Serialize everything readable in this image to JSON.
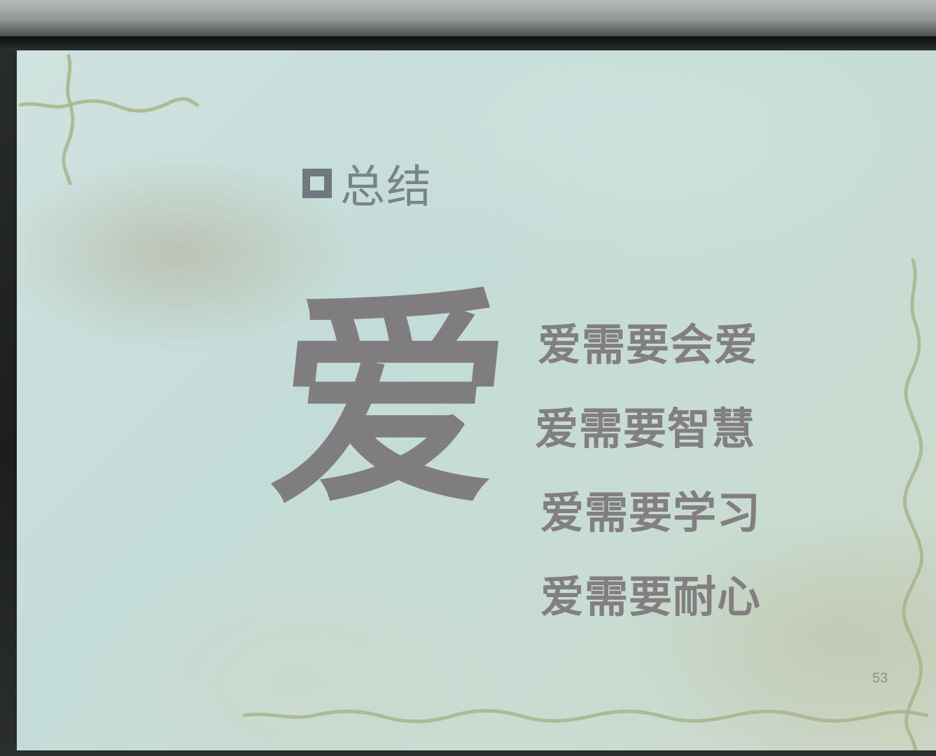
{
  "slide": {
    "title": "总结",
    "title_icon": "hollow-square-bullet-icon",
    "main_character": "爱",
    "lines": [
      "爱需要会爱",
      "爱需要智慧",
      "爱需要学习",
      "爱需要耐心"
    ],
    "page_number": "53"
  },
  "colors": {
    "background": "#c9dfdb",
    "text": "#807d80",
    "vine": "#a7b48b"
  }
}
